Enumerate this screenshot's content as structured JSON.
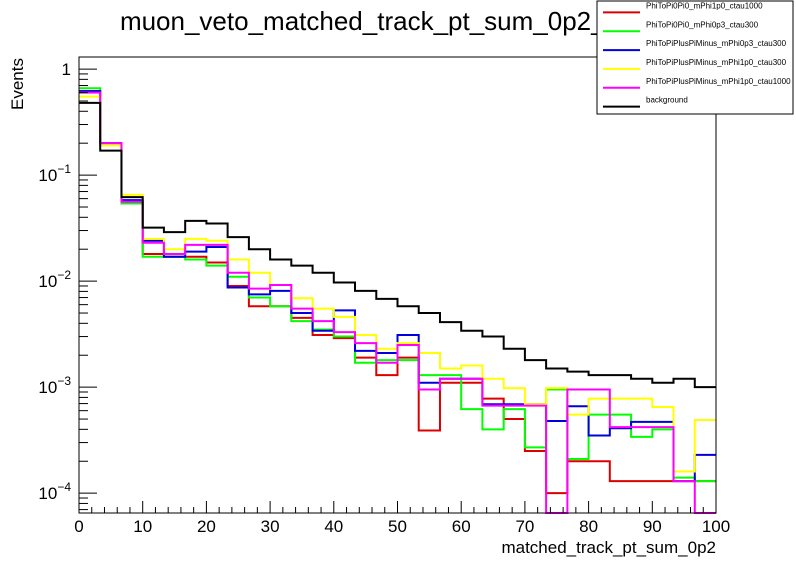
{
  "chart_data": {
    "type": "line",
    "title": "muon_veto_matched_track_pt_sum_0p2_0",
    "xlabel": "matched_track_pt_sum_0p2",
    "ylabel": "Events",
    "xlim": [
      0,
      100
    ],
    "ylim": [
      6.5e-05,
      1.3
    ],
    "log_y": true,
    "grid": false,
    "legend_position": "top-right",
    "x_ticks": [
      {
        "v": 0,
        "label": "0"
      },
      {
        "v": 10,
        "label": "10"
      },
      {
        "v": 20,
        "label": "20"
      },
      {
        "v": 30,
        "label": "30"
      },
      {
        "v": 40,
        "label": "40"
      },
      {
        "v": 50,
        "label": "50"
      },
      {
        "v": 60,
        "label": "60"
      },
      {
        "v": 70,
        "label": "70"
      },
      {
        "v": 80,
        "label": "80"
      },
      {
        "v": 90,
        "label": "90"
      },
      {
        "v": 100,
        "label": "100"
      }
    ],
    "y_ticks": [
      {
        "v": 0.0001,
        "base": "10",
        "exp": "−4"
      },
      {
        "v": 0.001,
        "base": "10",
        "exp": "−3"
      },
      {
        "v": 0.01,
        "base": "10",
        "exp": "−2"
      },
      {
        "v": 0.1,
        "base": "10",
        "exp": "−1"
      },
      {
        "v": 1,
        "base": "1",
        "exp": ""
      }
    ],
    "bin_edges": [
      0,
      3.33,
      6.67,
      10,
      13.33,
      16.67,
      20,
      23.33,
      26.67,
      30,
      33.33,
      36.67,
      40,
      43.33,
      46.67,
      50,
      53.33,
      56.67,
      60,
      63.33,
      66.67,
      70,
      73.33,
      76.67,
      80,
      83.33,
      86.67,
      90,
      93.33,
      96.67,
      100
    ],
    "series": [
      {
        "name": "PhiToPi0Pi0_mPhi1p0_ctau1000",
        "color": "#dd0000",
        "values": [
          0.62,
          0.19,
          0.057,
          0.018,
          0.017,
          0.017,
          0.015,
          0.009,
          0.0058,
          0.0058,
          0.0045,
          0.0031,
          0.0029,
          0.0019,
          0.0013,
          0.0019,
          0.00039,
          0.0011,
          0.0011,
          0.00078,
          0.0005,
          0.00025,
          0.0001,
          0.0002,
          0.0002,
          0.00013,
          0.00013,
          0.00013,
          0.00013,
          0.00013
        ]
      },
      {
        "name": "PhiToPi0Pi0_mPhi0p3_ctau300",
        "color": "#00ff00",
        "values": [
          0.66,
          0.19,
          0.054,
          0.017,
          0.017,
          0.016,
          0.014,
          0.011,
          0.007,
          0.0058,
          0.0042,
          0.0035,
          0.003,
          0.0017,
          0.0018,
          0.0018,
          0.0013,
          0.0013,
          0.00062,
          0.0004,
          0.00062,
          0.00027,
          0.00095,
          0.00021,
          0.00055,
          0.00055,
          0.00034,
          0.0004,
          0.00014,
          0.00013
        ]
      },
      {
        "name": "PhiToPiPlusPiMinus_mPhi0p3_ctau300",
        "color": "#0000dd",
        "values": [
          0.62,
          0.2,
          0.058,
          0.024,
          0.017,
          0.019,
          0.021,
          0.0087,
          0.0075,
          0.0081,
          0.005,
          0.0034,
          0.0053,
          0.0022,
          0.0021,
          0.0031,
          0.0011,
          0.0012,
          0.0012,
          0.00069,
          0.00069,
          0.00069,
          0.00048,
          0.00066,
          0.00035,
          0.00041,
          0.00047,
          0.00047,
          0.00013,
          0.00023
        ]
      },
      {
        "name": "PhiToPiPlusPiMinus_mPhi1p0_ctau300",
        "color": "#ffff00",
        "values": [
          0.55,
          0.19,
          0.065,
          0.025,
          0.02,
          0.025,
          0.024,
          0.016,
          0.012,
          0.0092,
          0.0069,
          0.0055,
          0.0046,
          0.0031,
          0.0023,
          0.0026,
          0.0021,
          0.0015,
          0.0016,
          0.0012,
          0.00098,
          0.00069,
          0.00098,
          0.00055,
          0.00078,
          0.00078,
          0.00078,
          0.00065,
          0.00016,
          0.00049
        ]
      },
      {
        "name": "PhiToPiPlusPiMinus_mPhi1p0_ctau1000",
        "color": "#ff00ff",
        "values": [
          0.6,
          0.2,
          0.056,
          0.023,
          0.018,
          0.022,
          0.022,
          0.012,
          0.0085,
          0.0092,
          0.0055,
          0.0042,
          0.0033,
          0.0026,
          0.0017,
          0.0025,
          0.00095,
          0.0012,
          0.0012,
          0.00067,
          0.00067,
          0.00067,
          0.0,
          0.00095,
          0.00095,
          0.00042,
          0.00042,
          0.00042,
          0.00013,
          0.0
        ]
      },
      {
        "name": "background",
        "color": "#000000",
        "values": [
          0.48,
          0.17,
          0.062,
          0.032,
          0.029,
          0.037,
          0.035,
          0.026,
          0.02,
          0.016,
          0.014,
          0.012,
          0.0097,
          0.0081,
          0.0068,
          0.0058,
          0.005,
          0.0041,
          0.0034,
          0.003,
          0.0023,
          0.0018,
          0.0015,
          0.0014,
          0.0013,
          0.0013,
          0.0012,
          0.0011,
          0.0012,
          0.001
        ]
      }
    ]
  }
}
